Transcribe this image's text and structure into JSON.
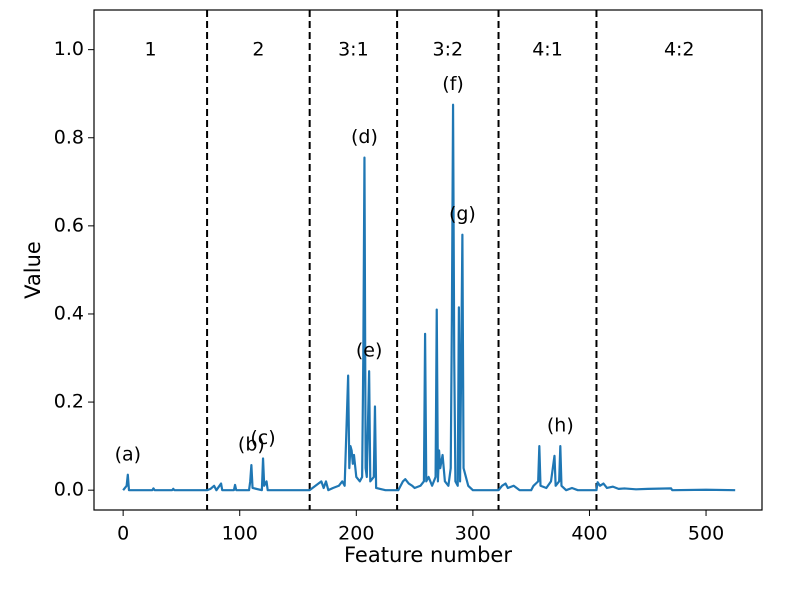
{
  "chart_data": {
    "type": "line",
    "x_label": "Feature number",
    "y_label": "Value",
    "xlim": [
      -25,
      548
    ],
    "ylim": [
      -0.045,
      1.09
    ],
    "xticks": [
      0,
      100,
      200,
      300,
      400,
      500
    ],
    "yticks": [
      {
        "value": 0,
        "label": "0.0"
      },
      0.2,
      0.4,
      0.6,
      0.8,
      {
        "value": 1,
        "label": "1.0"
      }
    ],
    "dividers": [
      72,
      160,
      235,
      322,
      406
    ],
    "regions": [
      "1",
      "2",
      "3:1",
      "3:2",
      "4:1",
      "4:2"
    ],
    "annotations": [
      {
        "text": "(a)",
        "x": 4,
        "y": 0.035
      },
      {
        "text": "(b)",
        "x": 110,
        "y": 0.057
      },
      {
        "text": "(c)",
        "x": 120,
        "y": 0.072
      },
      {
        "text": "(d)",
        "x": 207,
        "y": 0.755
      },
      {
        "text": "(e)",
        "x": 211,
        "y": 0.27
      },
      {
        "text": "(f)",
        "x": 283,
        "y": 0.875
      },
      {
        "text": "(g)",
        "x": 291,
        "y": 0.58
      },
      {
        "text": "(h)",
        "x": 375,
        "y": 0.1
      }
    ],
    "series": [
      {
        "color": "#1f77b4",
        "x": [
          0,
          3,
          4,
          5,
          25,
          26,
          27,
          42,
          43,
          44,
          72,
          75,
          78,
          80,
          84,
          85,
          95,
          96,
          97,
          108,
          109,
          110,
          111,
          119,
          120,
          121,
          123,
          124,
          160,
          165,
          170,
          172,
          174,
          176,
          180,
          185,
          188,
          190,
          193,
          194,
          195,
          196,
          197,
          198,
          200,
          203,
          205,
          206,
          207,
          208,
          209,
          211,
          212,
          215,
          216,
          217,
          225,
          236,
          240,
          242,
          245,
          248,
          250,
          255,
          258,
          259,
          260,
          262,
          265,
          268,
          269,
          270,
          271,
          272,
          274,
          276,
          279,
          281,
          282,
          283,
          284,
          285,
          287,
          288,
          289,
          291,
          292,
          294,
          296,
          300,
          322,
          325,
          328,
          330,
          335,
          340,
          350,
          352,
          356,
          357,
          358,
          363,
          367,
          370,
          371,
          374,
          375,
          376,
          380,
          385,
          390,
          406,
          407,
          409,
          412,
          415,
          420,
          425,
          430,
          440,
          450,
          470,
          471,
          500,
          525
        ],
        "values": [
          0,
          0.01,
          0.035,
          0,
          0,
          0.004,
          0,
          0,
          0.003,
          0,
          0,
          0.003,
          0.01,
          0,
          0.015,
          0,
          0,
          0.012,
          0,
          0,
          0.02,
          0.057,
          0.005,
          0,
          0.072,
          0.01,
          0.02,
          0,
          0,
          0.01,
          0.02,
          0.005,
          0.02,
          0,
          0.005,
          0.01,
          0.02,
          0.01,
          0.26,
          0.05,
          0.1,
          0.09,
          0.06,
          0.08,
          0.03,
          0.02,
          0.03,
          0.3,
          0.755,
          0.05,
          0.03,
          0.27,
          0.02,
          0.03,
          0.19,
          0.005,
          0,
          0,
          0.02,
          0.025,
          0.015,
          0.01,
          0.005,
          0.01,
          0.02,
          0.355,
          0.02,
          0.03,
          0.01,
          0.03,
          0.41,
          0.02,
          0.09,
          0.05,
          0.08,
          0.02,
          0.01,
          0.05,
          0.4,
          0.875,
          0.3,
          0.02,
          0.01,
          0.415,
          0.02,
          0.58,
          0.05,
          0.03,
          0.01,
          0,
          0,
          0.01,
          0.015,
          0.005,
          0.01,
          0,
          0,
          0.01,
          0.02,
          0.1,
          0.01,
          0.005,
          0.02,
          0.078,
          0.01,
          0.02,
          0.1,
          0.01,
          0,
          0.005,
          0,
          0,
          0.018,
          0.01,
          0.015,
          0.005,
          0.008,
          0.003,
          0.004,
          0.002,
          0.003,
          0.004,
          0,
          0.001,
          0
        ]
      }
    ]
  }
}
